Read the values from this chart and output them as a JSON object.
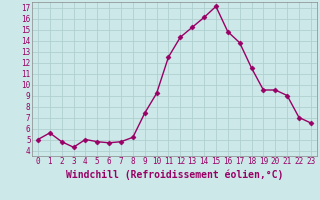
{
  "x": [
    0,
    1,
    2,
    3,
    4,
    5,
    6,
    7,
    8,
    9,
    10,
    11,
    12,
    13,
    14,
    15,
    16,
    17,
    18,
    19,
    20,
    21,
    22,
    23
  ],
  "y": [
    5.0,
    5.6,
    4.8,
    4.3,
    5.0,
    4.8,
    4.7,
    4.8,
    5.2,
    7.4,
    9.2,
    12.5,
    14.3,
    15.2,
    16.1,
    17.1,
    14.8,
    13.8,
    11.5,
    9.5,
    9.5,
    9.0,
    7.0,
    6.5
  ],
  "line_color": "#990066",
  "marker": "D",
  "markersize": 2.5,
  "linewidth": 1.0,
  "xlabel": "Windchill (Refroidissement éolien,°C)",
  "xlabel_fontsize": 7,
  "xlim": [
    -0.5,
    23.5
  ],
  "ylim": [
    3.5,
    17.5
  ],
  "yticks": [
    4,
    5,
    6,
    7,
    8,
    9,
    10,
    11,
    12,
    13,
    14,
    15,
    16,
    17
  ],
  "xticks": [
    0,
    1,
    2,
    3,
    4,
    5,
    6,
    7,
    8,
    9,
    10,
    11,
    12,
    13,
    14,
    15,
    16,
    17,
    18,
    19,
    20,
    21,
    22,
    23
  ],
  "bg_color": "#cce8e8",
  "grid_color": "#b0d0d0",
  "line_border_color": "#880055",
  "tick_color": "#990066",
  "label_color": "#990066",
  "tick_fontsize": 5.5,
  "spine_color": "#888888"
}
